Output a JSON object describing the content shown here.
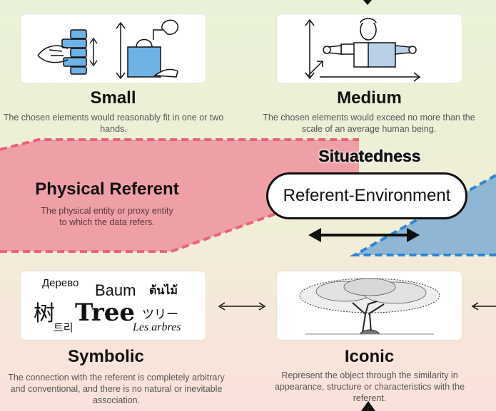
{
  "small": {
    "title": "Small",
    "desc": "The chosen elements would reasonably fit in one or two hands."
  },
  "medium": {
    "title": "Medium",
    "desc": "The chosen elements would exceed no more than the scale of an average human being."
  },
  "physical": {
    "title": "Physical Referent",
    "desc": "The physical entity or proxy entity to which the data refers."
  },
  "situatedness": {
    "title": "Situatedness",
    "box_label": "Referent-Environment"
  },
  "symbolic": {
    "title": "Symbolic",
    "desc": "The connection with the referent is completely arbitrary and conventional, and there is no natural or inevitable association.",
    "words": {
      "russian": "Дерево",
      "german": "Baum",
      "thai": "ต้นไม้",
      "chinese": "树",
      "english": "Tree",
      "japanese": "ツリー",
      "korean": "트리",
      "french": "Les arbres"
    }
  },
  "iconic": {
    "title": "Iconic",
    "desc": "Represent the object through the similarity in appearance, structure or characteristics with the referent."
  },
  "colors": {
    "pink_band": "#ef9fa6",
    "blue_band": "#8fb7d4",
    "pink_dash": "#e8637b",
    "blue_dash": "#2e86d6",
    "hand_blue": "#6fb2e6"
  }
}
